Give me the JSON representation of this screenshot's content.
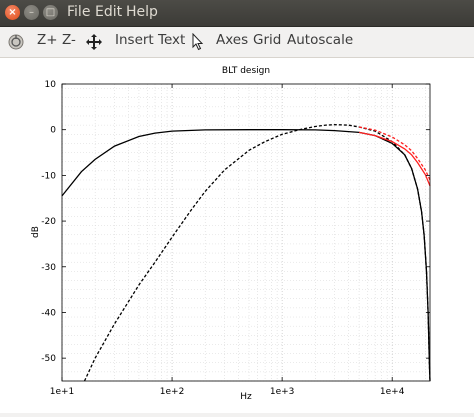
{
  "window": {
    "menu": {
      "file": "File",
      "edit": "Edit",
      "help": "Help"
    }
  },
  "toolbar": {
    "zoom_in": "Z+",
    "zoom_out": "Z-",
    "insert_text": "Insert Text",
    "axes": "Axes",
    "grid": "Grid",
    "autoscale": "Autoscale",
    "icons": [
      "rotate-icon",
      "pan-icon",
      "pointer-icon"
    ]
  },
  "chart_data": {
    "type": "line",
    "title": "BLT design",
    "xlabel": "Hz",
    "ylabel": "dB",
    "xscale": "log",
    "xlim": [
      10,
      22050
    ],
    "ylim": [
      -55,
      10
    ],
    "xticks": [
      "1e+1",
      "1e+2",
      "1e+3",
      "1e+4"
    ],
    "yticks": [
      10,
      0,
      -10,
      -20,
      -30,
      -40,
      -50
    ],
    "grid": true,
    "series": [
      {
        "style": "solid",
        "color": "#000000",
        "x": [
          10,
          15,
          20,
          30,
          50,
          70,
          100,
          200,
          500,
          1000,
          2000,
          3000,
          5000,
          7000,
          10000,
          13000,
          15000,
          17000,
          18500,
          19500,
          20500,
          21200,
          21800,
          22050
        ],
        "y": [
          -14.5,
          -9.2,
          -6.5,
          -3.6,
          -1.5,
          -0.75,
          -0.3,
          -0.05,
          0,
          0,
          -0.05,
          -0.2,
          -0.6,
          -1.3,
          -3.0,
          -5.5,
          -8.5,
          -13,
          -18,
          -23,
          -31,
          -40,
          -52,
          -56
        ]
      },
      {
        "style": "dashed",
        "color": "#000000",
        "x": [
          16,
          20,
          30,
          50,
          70,
          100,
          150,
          200,
          300,
          500,
          700,
          1000,
          1500,
          2000,
          2500,
          3000,
          4000,
          5000,
          7000,
          10000,
          13000,
          15000,
          17000,
          18500,
          19500,
          20500,
          21200,
          21800,
          22050
        ],
        "y": [
          -55,
          -50,
          -42.5,
          -34,
          -29,
          -23.5,
          -17.5,
          -13.5,
          -8.8,
          -4.5,
          -2.6,
          -1.0,
          0.1,
          0.7,
          1.0,
          1.1,
          1.0,
          0.6,
          -0.3,
          -2.6,
          -5.5,
          -8.5,
          -13,
          -18,
          -23,
          -31,
          -40,
          -52,
          -56
        ]
      },
      {
        "style": "solid",
        "color": "#ff2020",
        "x": [
          5000,
          7000,
          10000,
          13000,
          15000,
          17000,
          20000,
          22050
        ],
        "y": [
          -0.6,
          -1.3,
          -2.6,
          -4.2,
          -5.5,
          -7.2,
          -9.8,
          -12.3
        ]
      },
      {
        "style": "dashed",
        "color": "#ff2020",
        "x": [
          5000,
          7000,
          10000,
          13000,
          15000,
          17000,
          20000,
          22050
        ],
        "y": [
          0.6,
          -0.1,
          -1.6,
          -3.3,
          -4.6,
          -6.3,
          -8.8,
          -11.0
        ]
      }
    ]
  }
}
